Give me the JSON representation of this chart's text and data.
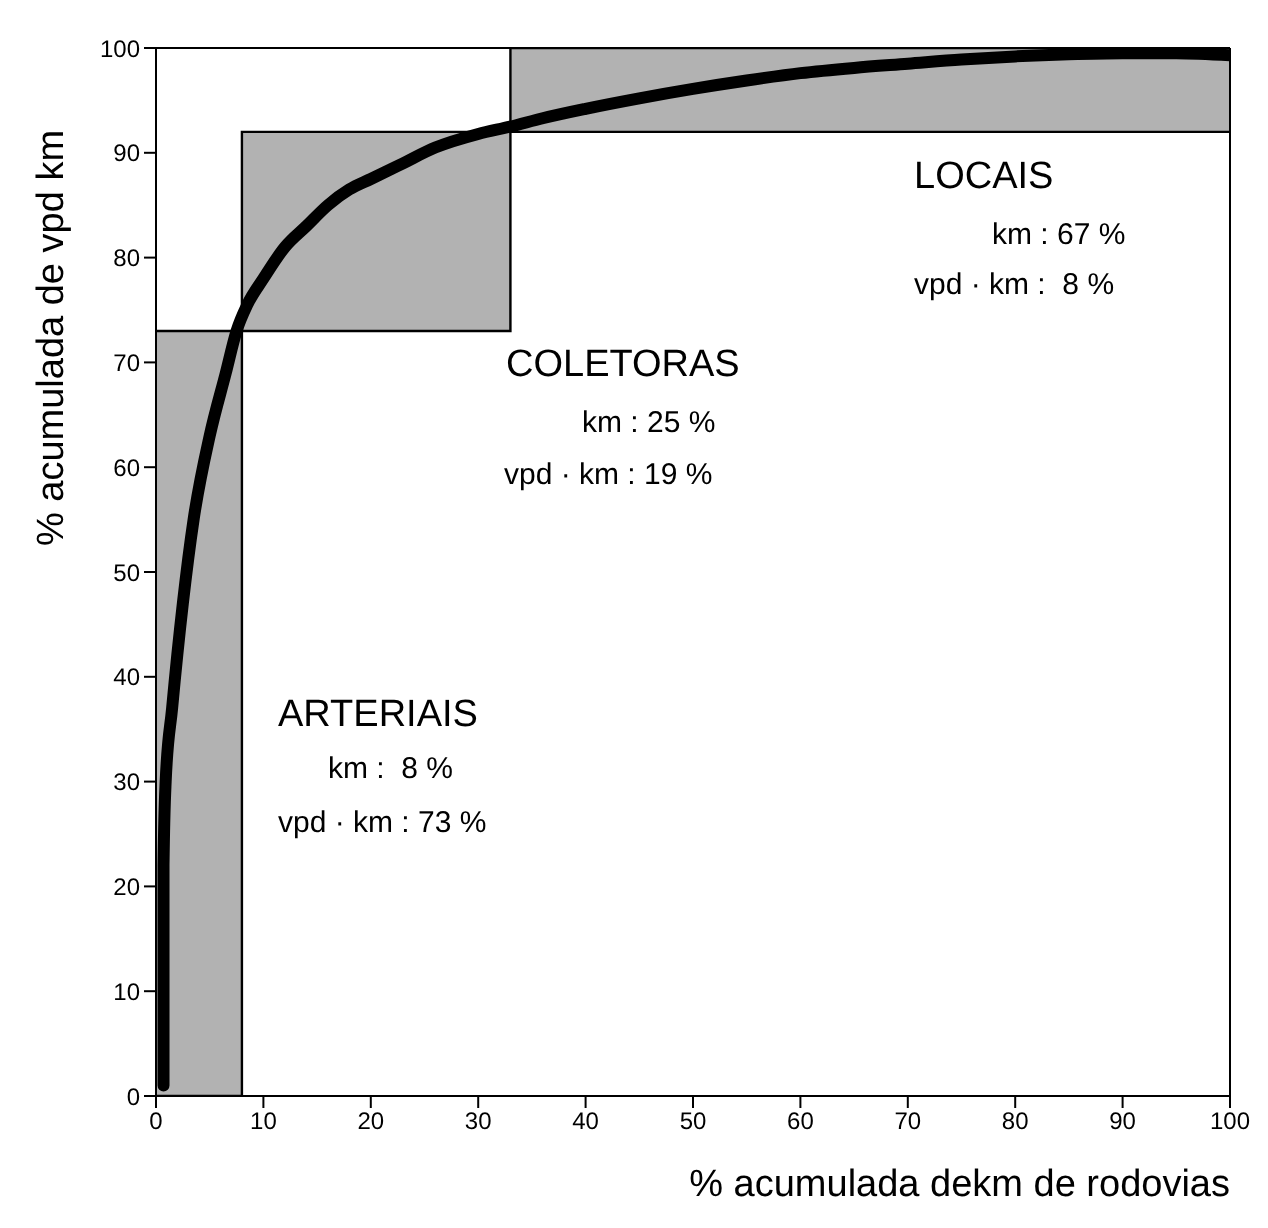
{
  "chart_data": {
    "type": "line",
    "xlabel": "% acumulada dekm de rodovias",
    "ylabel": "% acumulada de vpd km",
    "xlim": [
      0,
      100
    ],
    "ylim": [
      0,
      100
    ],
    "xticks": [
      0,
      10,
      20,
      30,
      40,
      50,
      60,
      70,
      80,
      90,
      100
    ],
    "yticks": [
      0,
      10,
      20,
      30,
      40,
      50,
      60,
      70,
      80,
      90,
      100
    ],
    "grid": false,
    "marker": "none",
    "line_style": "solid",
    "series": [
      {
        "type": "step",
        "color": "#000000",
        "x": [
          0,
          8,
          33,
          100
        ],
        "lower": [
          0,
          73,
          92,
          92
        ],
        "upper": [
          73,
          92,
          100,
          100
        ],
        "values": [
          73,
          92,
          100,
          100
        ]
      },
      {
        "type": "step",
        "color": "#000000",
        "x": [
          0,
          8,
          33,
          100
        ],
        "values": [
          0,
          73,
          92,
          92
        ]
      },
      {
        "type": "line",
        "color": "#000000",
        "x": [
          0.7,
          0.7,
          0.9,
          1.5,
          2.5,
          3.5,
          5,
          6.5,
          7.5,
          8.5,
          10,
          12,
          14,
          16,
          18,
          20,
          23,
          26,
          30,
          33,
          36,
          40,
          45,
          50,
          55,
          60,
          65,
          70,
          75,
          80,
          85,
          90,
          95,
          100
        ],
        "values": [
          1,
          22,
          30,
          37,
          47,
          55,
          63,
          69,
          73,
          75.5,
          78,
          81,
          83,
          85,
          86.5,
          87.5,
          89,
          90.5,
          91.8,
          92.5,
          93.3,
          94.2,
          95.2,
          96.1,
          96.9,
          97.6,
          98.1,
          98.5,
          98.9,
          99.2,
          99.4,
          99.5,
          99.5,
          99.3
        ]
      }
    ],
    "annotations": [
      "ARTERIAIS",
      "km :  8 %",
      "vpd · km : 73 %",
      "COLETORAS",
      "km : 25 %",
      "vpd · km : 19 %",
      "LOCAIS",
      "km : 67 %",
      "vpd · km :  8 %"
    ]
  }
}
